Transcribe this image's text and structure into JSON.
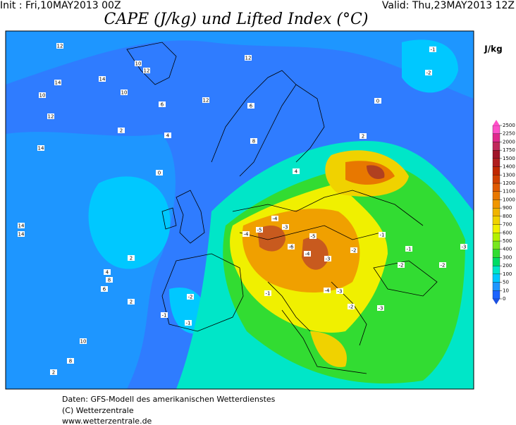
{
  "header": {
    "init": "Init : Fri,10MAY2013 00Z",
    "valid": "Valid: Thu,23MAY2013 12Z",
    "title": "CAPE (J/kg) und Lifted Index (°C)"
  },
  "colorbar": {
    "unit": "J/kg",
    "levels": [
      0,
      10,
      50,
      100,
      200,
      300,
      400,
      500,
      600,
      700,
      800,
      900,
      1000,
      1100,
      1200,
      1300,
      1400,
      1500,
      1750,
      2000,
      2250,
      2500
    ],
    "colors": [
      "#1c64ff",
      "#1e96ff",
      "#00c8ff",
      "#00e6c8",
      "#00dc64",
      "#32dc32",
      "#78e61e",
      "#b4f000",
      "#f0f000",
      "#f0d200",
      "#f0b400",
      "#f09600",
      "#e87800",
      "#e05a00",
      "#d04000",
      "#c02800",
      "#b01e1e",
      "#a01428",
      "#c0285a",
      "#e0288c",
      "#ff50c8"
    ]
  },
  "map": {
    "labels": [
      "12",
      "14",
      "10",
      "12",
      "14",
      "10",
      "14",
      "12",
      "10",
      "12",
      "12",
      "6",
      "8",
      "6",
      "4",
      "2",
      "0",
      "14",
      "14",
      "2",
      "8",
      "6",
      "4",
      "2",
      "-1",
      "-1",
      "-2",
      "-4",
      "-5",
      "-4",
      "-3",
      "-6",
      "-5",
      "-4",
      "-3",
      "-2",
      "-1",
      "-3",
      "-2",
      "-4",
      "-3",
      "-2",
      "-1",
      "-2",
      "-3",
      "-1",
      "-2",
      "0",
      "2",
      "4",
      "-1",
      "10",
      "8",
      "2"
    ]
  },
  "footer": {
    "line1": "Daten: GFS-Modell des amerikanischen Wetterdienstes",
    "line2": "(C) Wetterzentrale",
    "line3": "www.wetterzentrale.de"
  }
}
